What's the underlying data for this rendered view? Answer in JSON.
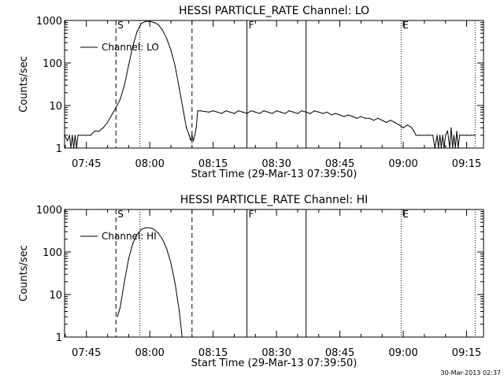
{
  "footer": {
    "timestamp": "30-Mar-2013 02:37"
  },
  "chart_data": [
    {
      "type": "line",
      "title": "HESSI PARTICLE_RATE Channel: LO",
      "xlabel": "Start Time (29-Mar-13 07:39:50)",
      "ylabel": "Counts/sec",
      "y_scale": "log",
      "ylim": [
        1,
        1000
      ],
      "xlim": [
        "07:39:50",
        "09:19:00"
      ],
      "x_ticks": [
        "07:45",
        "08:00",
        "08:15",
        "08:30",
        "08:45",
        "09:00",
        "09:15"
      ],
      "y_ticks": [
        "1",
        "10",
        "100",
        "1000"
      ],
      "legend": {
        "label": "Channel: LO",
        "position": "top-left"
      },
      "markers": [
        {
          "label": "S",
          "time": "07:52:00",
          "style": "dashed"
        },
        {
          "label": "",
          "time": "07:57:40",
          "style": "dotted"
        },
        {
          "label": "",
          "time": "08:10:00",
          "style": "dashed"
        },
        {
          "label": "F",
          "time": "08:23:00",
          "style": "solid"
        },
        {
          "label": "",
          "time": "08:37:00",
          "style": "solid"
        },
        {
          "label": "E",
          "time": "08:59:30",
          "style": "dotted"
        },
        {
          "label": "",
          "time": "09:17:00",
          "style": "dotted"
        }
      ],
      "series": [
        {
          "name": "Channel: LO",
          "points": [
            [
              "07:39:50",
              2
            ],
            [
              "07:40:30",
              1.5
            ],
            [
              "07:41:00",
              2
            ],
            [
              "07:41:20",
              1
            ],
            [
              "07:41:40",
              2
            ],
            [
              "07:42:00",
              1
            ],
            [
              "07:42:20",
              2
            ],
            [
              "07:42:40",
              1
            ],
            [
              "07:43:00",
              2
            ],
            [
              "07:44:00",
              2
            ],
            [
              "07:46:00",
              2
            ],
            [
              "07:47:00",
              2.5
            ],
            [
              "07:48:00",
              2.5
            ],
            [
              "07:49:00",
              3
            ],
            [
              "07:50:00",
              4
            ],
            [
              "07:51:00",
              6
            ],
            [
              "07:52:00",
              9
            ],
            [
              "07:53:00",
              14
            ],
            [
              "07:54:00",
              30
            ],
            [
              "07:55:00",
              90
            ],
            [
              "07:56:00",
              250
            ],
            [
              "07:57:00",
              550
            ],
            [
              "07:58:00",
              850
            ],
            [
              "07:59:00",
              950
            ],
            [
              "08:00:00",
              950
            ],
            [
              "08:01:00",
              900
            ],
            [
              "08:02:00",
              800
            ],
            [
              "08:03:00",
              600
            ],
            [
              "08:04:00",
              380
            ],
            [
              "08:05:00",
              200
            ],
            [
              "08:06:00",
              85
            ],
            [
              "08:07:00",
              25
            ],
            [
              "08:08:00",
              7
            ],
            [
              "08:08:40",
              3
            ],
            [
              "08:09:20",
              2
            ],
            [
              "08:09:40",
              1.5
            ],
            [
              "08:10:00",
              2
            ],
            [
              "08:10:20",
              1.5
            ],
            [
              "08:10:40",
              2
            ],
            [
              "08:11:00",
              3
            ],
            [
              "08:11:20",
              7.5
            ],
            [
              "08:12:00",
              7.5
            ],
            [
              "08:14:00",
              7
            ],
            [
              "08:15:00",
              7.5
            ],
            [
              "08:16:00",
              7
            ],
            [
              "08:17:00",
              6.5
            ],
            [
              "08:18:00",
              7.5
            ],
            [
              "08:19:00",
              7
            ],
            [
              "08:20:00",
              6.5
            ],
            [
              "08:21:00",
              7.5
            ],
            [
              "08:22:00",
              7
            ],
            [
              "08:23:00",
              6.5
            ],
            [
              "08:24:00",
              7.5
            ],
            [
              "08:25:00",
              7
            ],
            [
              "08:26:00",
              6.5
            ],
            [
              "08:27:00",
              7.5
            ],
            [
              "08:28:00",
              7
            ],
            [
              "08:29:00",
              6.5
            ],
            [
              "08:30:00",
              7.5
            ],
            [
              "08:31:00",
              7
            ],
            [
              "08:32:00",
              6.5
            ],
            [
              "08:33:00",
              7.5
            ],
            [
              "08:34:00",
              7
            ],
            [
              "08:35:00",
              6.5
            ],
            [
              "08:36:00",
              7.5
            ],
            [
              "08:37:00",
              7
            ],
            [
              "08:38:00",
              6.5
            ],
            [
              "08:39:00",
              7.5
            ],
            [
              "08:40:00",
              7
            ],
            [
              "08:41:00",
              6.5
            ],
            [
              "08:42:00",
              7
            ],
            [
              "08:43:00",
              6
            ],
            [
              "08:44:00",
              6.5
            ],
            [
              "08:45:00",
              6
            ],
            [
              "08:46:00",
              5.5
            ],
            [
              "08:47:00",
              6
            ],
            [
              "08:48:00",
              5.5
            ],
            [
              "08:49:00",
              5
            ],
            [
              "08:50:00",
              5.5
            ],
            [
              "08:51:00",
              5
            ],
            [
              "08:52:00",
              5
            ],
            [
              "08:53:00",
              4.5
            ],
            [
              "08:54:00",
              5
            ],
            [
              "08:55:00",
              4.5
            ],
            [
              "08:56:00",
              4
            ],
            [
              "08:57:00",
              4.5
            ],
            [
              "08:58:00",
              4
            ],
            [
              "08:59:00",
              3.5
            ],
            [
              "09:00:00",
              3
            ],
            [
              "09:01:00",
              3.5
            ],
            [
              "09:02:00",
              3
            ],
            [
              "09:02:30",
              2.5
            ],
            [
              "09:03:00",
              2
            ],
            [
              "09:04:00",
              2
            ],
            [
              "09:06:00",
              2
            ],
            [
              "09:07:00",
              2
            ],
            [
              "09:07:30",
              1
            ],
            [
              "09:08:00",
              2
            ],
            [
              "09:08:20",
              1
            ],
            [
              "09:08:40",
              2
            ],
            [
              "09:09:00",
              1
            ],
            [
              "09:09:20",
              2
            ],
            [
              "09:09:40",
              1
            ],
            [
              "09:10:00",
              2
            ],
            [
              "09:10:30",
              2.5
            ],
            [
              "09:11:00",
              1
            ],
            [
              "09:11:20",
              3
            ],
            [
              "09:11:40",
              1
            ],
            [
              "09:12:00",
              2
            ],
            [
              "09:12:20",
              1
            ],
            [
              "09:12:40",
              2.5
            ],
            [
              "09:13:00",
              1
            ],
            [
              "09:13:20",
              2
            ],
            [
              "09:14:00",
              2
            ],
            [
              "09:15:00",
              2
            ],
            [
              "09:16:00",
              2
            ],
            [
              "09:17:00",
              2
            ]
          ]
        }
      ]
    },
    {
      "type": "line",
      "title": "HESSI PARTICLE_RATE Channel: HI",
      "xlabel": "Start Time (29-Mar-13 07:39:50)",
      "ylabel": "Counts/sec",
      "y_scale": "log",
      "ylim": [
        1,
        1000
      ],
      "xlim": [
        "07:39:50",
        "09:19:00"
      ],
      "x_ticks": [
        "07:45",
        "08:00",
        "08:15",
        "08:30",
        "08:45",
        "09:00",
        "09:15"
      ],
      "y_ticks": [
        "1",
        "10",
        "100",
        "1000"
      ],
      "legend": {
        "label": "Channel: HI",
        "position": "top-left"
      },
      "markers": [
        {
          "label": "S",
          "time": "07:52:00",
          "style": "dashed"
        },
        {
          "label": "",
          "time": "07:57:40",
          "style": "dotted"
        },
        {
          "label": "",
          "time": "08:10:00",
          "style": "dashed"
        },
        {
          "label": "F",
          "time": "08:23:00",
          "style": "solid"
        },
        {
          "label": "",
          "time": "08:37:00",
          "style": "solid"
        },
        {
          "label": "E",
          "time": "08:59:30",
          "style": "dotted"
        },
        {
          "label": "",
          "time": "09:17:00",
          "style": "dotted"
        }
      ],
      "series": [
        {
          "name": "Channel: HI",
          "points": [
            [
              "07:52:20",
              3
            ],
            [
              "07:53:00",
              5
            ],
            [
              "07:54:00",
              20
            ],
            [
              "07:55:00",
              70
            ],
            [
              "07:56:00",
              160
            ],
            [
              "07:57:00",
              260
            ],
            [
              "07:58:00",
              340
            ],
            [
              "07:59:00",
              370
            ],
            [
              "08:00:00",
              370
            ],
            [
              "08:01:00",
              340
            ],
            [
              "08:02:00",
              280
            ],
            [
              "08:03:00",
              200
            ],
            [
              "08:04:00",
              120
            ],
            [
              "08:05:00",
              55
            ],
            [
              "08:06:00",
              18
            ],
            [
              "08:07:00",
              4
            ],
            [
              "08:07:40",
              1
            ]
          ]
        }
      ]
    }
  ]
}
